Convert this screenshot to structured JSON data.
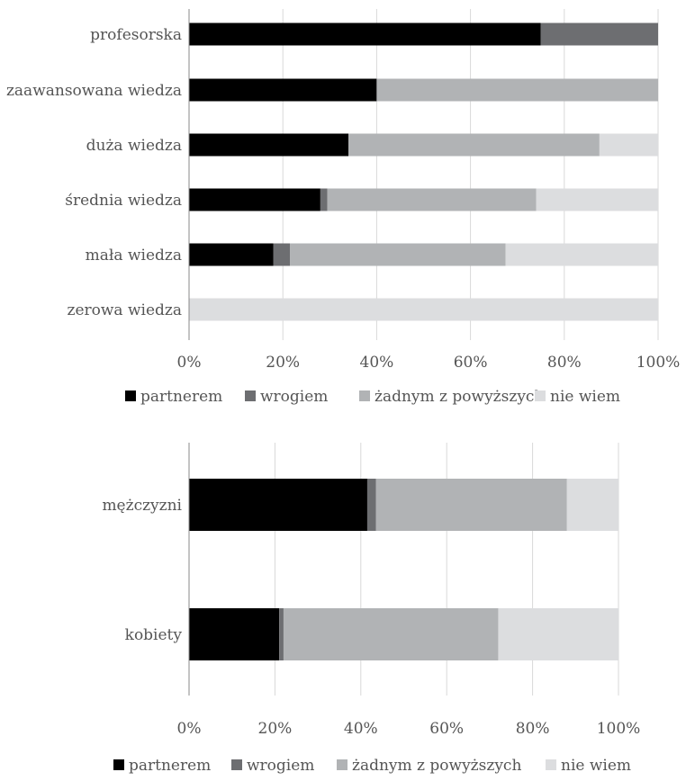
{
  "chart_data": [
    {
      "type": "bar",
      "orientation": "horizontal",
      "stacked": "percent",
      "categories": [
        "profesorska",
        "zaawansowana wiedza",
        "duża wiedza",
        "średnia wiedza",
        "mała wiedza",
        "zerowa wiedza"
      ],
      "series": [
        {
          "name": "partnerem",
          "color": "#000000",
          "values": [
            75,
            40,
            34,
            28,
            18,
            0
          ]
        },
        {
          "name": "wrogiem",
          "color": "#6d6e71",
          "values": [
            25,
            0,
            0,
            1.5,
            3.5,
            0
          ]
        },
        {
          "name": "żadnym z powyższych",
          "color": "#b1b3b5",
          "values": [
            0,
            60,
            53.5,
            44.5,
            46,
            0
          ]
        },
        {
          "name": "nie wiem",
          "color": "#dcdddf",
          "values": [
            0,
            0,
            12.5,
            26,
            32.5,
            100
          ]
        }
      ],
      "xlim": [
        0,
        100
      ],
      "xticks": [
        "0%",
        "20%",
        "40%",
        "60%",
        "80%",
        "100%"
      ],
      "grid": true,
      "legend": "bottom"
    },
    {
      "type": "bar",
      "orientation": "horizontal",
      "stacked": "percent",
      "categories": [
        "mężczyzni",
        "kobiety"
      ],
      "series": [
        {
          "name": "partnerem",
          "color": "#000000",
          "values": [
            41.5,
            21
          ]
        },
        {
          "name": "wrogiem",
          "color": "#6d6e71",
          "values": [
            2,
            1
          ]
        },
        {
          "name": "żadnym z powyższych",
          "color": "#b1b3b5",
          "values": [
            44.5,
            50
          ]
        },
        {
          "name": "nie wiem",
          "color": "#dcdddf",
          "values": [
            12,
            28
          ]
        }
      ],
      "xlim": [
        0,
        100
      ],
      "xticks": [
        "0%",
        "20%",
        "40%",
        "60%",
        "80%",
        "100%"
      ],
      "grid": true,
      "legend": "bottom"
    }
  ]
}
